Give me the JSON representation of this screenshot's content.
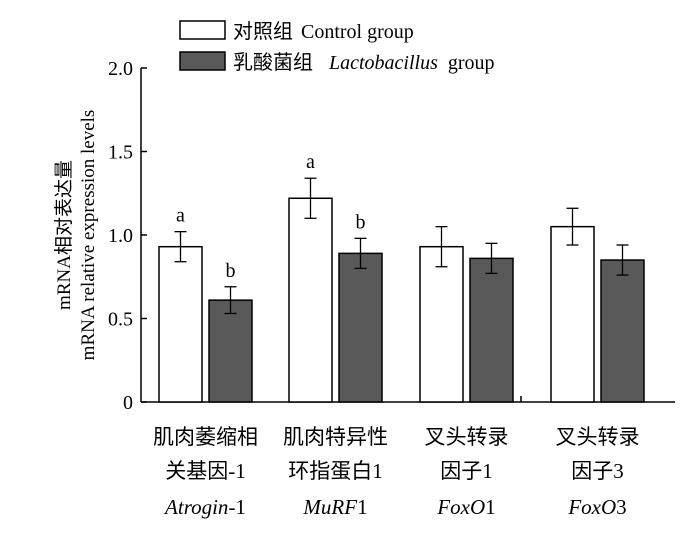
{
  "chart_data": {
    "type": "bar",
    "ylabel_cn": "mRNA相对表达量",
    "ylabel_en": "mRNA relative expression levels",
    "ylim": [
      0,
      2.0
    ],
    "yticks": [
      "0",
      "0.5",
      "1.0",
      "1.5",
      "2.0"
    ],
    "ytick_values": [
      0,
      0.5,
      1.0,
      1.5,
      2.0
    ],
    "legend_position": "top-left",
    "categories": [
      {
        "line1": "肌肉萎缩相",
        "line2": "关基因-1",
        "gene_italic": "Atrogin",
        "gene_suffix": "-1"
      },
      {
        "line1": "肌肉特异性",
        "line2": "环指蛋白1",
        "gene_italic": "MuRF",
        "gene_suffix": "1"
      },
      {
        "line1": "叉头转录",
        "line2": "因子1",
        "gene_italic": "FoxO",
        "gene_suffix": "1"
      },
      {
        "line1": "叉头转录",
        "line2": "因子3",
        "gene_italic": "FoxO",
        "gene_suffix": "3"
      }
    ],
    "series": [
      {
        "name_cn": "对照组",
        "name_en": "Control group",
        "color": "#ffffff",
        "values": [
          0.93,
          1.22,
          0.93,
          1.05
        ],
        "errors": [
          0.09,
          0.12,
          0.12,
          0.11
        ],
        "sig_labels": [
          "a",
          "a",
          "",
          ""
        ]
      },
      {
        "name_cn": "乳酸菌组",
        "name_en_italic": "Lactobacillus",
        "name_en_suffix": "group",
        "color": "#595959",
        "values": [
          0.61,
          0.89,
          0.86,
          0.85
        ],
        "errors": [
          0.08,
          0.09,
          0.09,
          0.09
        ],
        "sig_labels": [
          "b",
          "b",
          "",
          ""
        ]
      }
    ]
  }
}
